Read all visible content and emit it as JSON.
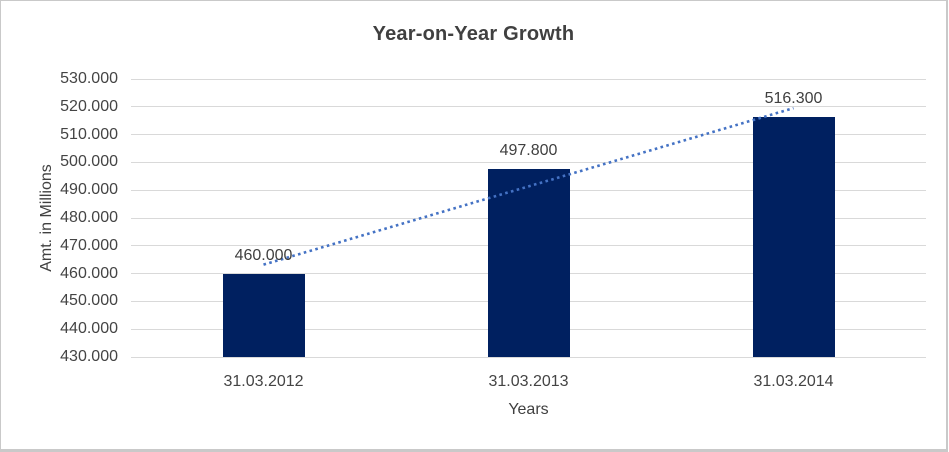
{
  "window": {
    "background": "#ffffff",
    "border_color": "#c9c9c9"
  },
  "chart_data": {
    "type": "bar",
    "title": "Year-on-Year Growth",
    "xlabel": "Years",
    "ylabel": "Amt. in Millions",
    "categories": [
      "31.03.2012",
      "31.03.2013",
      "31.03.2014"
    ],
    "values": [
      460.0,
      497.8,
      516.3
    ],
    "value_labels": [
      "460.000",
      "497.800",
      "516.300"
    ],
    "ylim": [
      430,
      530
    ],
    "yticks": [
      {
        "value": 430,
        "label": "430.000"
      },
      {
        "value": 440,
        "label": "440.000"
      },
      {
        "value": 450,
        "label": "450.000"
      },
      {
        "value": 460,
        "label": "460.000"
      },
      {
        "value": 470,
        "label": "470.000"
      },
      {
        "value": 480,
        "label": "480.000"
      },
      {
        "value": 490,
        "label": "490.000"
      },
      {
        "value": 500,
        "label": "500.000"
      },
      {
        "value": 510,
        "label": "510.000"
      },
      {
        "value": 520,
        "label": "520.000"
      },
      {
        "value": 530,
        "label": "530.000"
      }
    ],
    "grid": true,
    "legend": "none",
    "trendline": {
      "type": "linear",
      "style": "dotted",
      "color": "#4472c4"
    },
    "colors": {
      "bar": "#002060",
      "gridline": "#d9d9d9",
      "text": "#404040",
      "tick_text": "#444444"
    }
  }
}
